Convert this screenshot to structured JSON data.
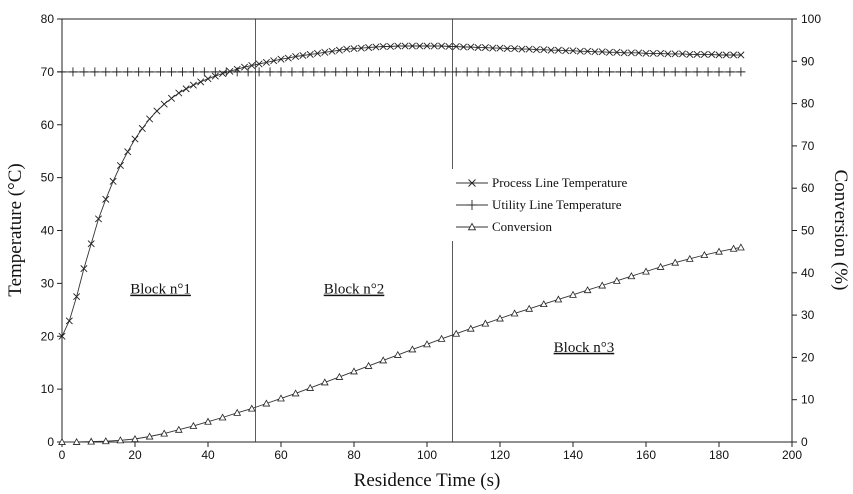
{
  "chart_data": {
    "type": "line",
    "xlabel": "Residence Time (s)",
    "ylabel": "Temperature (°C)",
    "y2label": "Conversion (%)",
    "xlim": [
      0,
      200
    ],
    "ylim": [
      0,
      80
    ],
    "y2lim": [
      0,
      100
    ],
    "xticks": [
      0,
      20,
      40,
      60,
      80,
      100,
      120,
      140,
      160,
      180,
      200
    ],
    "yticks": [
      0,
      10,
      20,
      30,
      40,
      50,
      60,
      70,
      80
    ],
    "y2ticks": [
      0,
      10,
      20,
      30,
      40,
      50,
      60,
      70,
      80,
      90,
      100
    ],
    "grid": false,
    "legend_position": "center-right",
    "block_dividers_x": [
      53,
      107
    ],
    "block_labels": [
      {
        "text": "Block n°1",
        "x": 27,
        "y": 29
      },
      {
        "text": "Block n°2",
        "x": 80,
        "y": 29
      },
      {
        "text": "Block n°3",
        "x": 143,
        "y": 18
      }
    ],
    "series": [
      {
        "name": "Process Line Temperature",
        "axis": "left",
        "marker": "x",
        "x": [
          0,
          2,
          4,
          6,
          8,
          10,
          12,
          14,
          16,
          18,
          20,
          22,
          24,
          26,
          28,
          30,
          32,
          34,
          36,
          38,
          40,
          42,
          44,
          46,
          48,
          50,
          52,
          54,
          56,
          58,
          60,
          62,
          64,
          66,
          68,
          70,
          72,
          74,
          76,
          78,
          80,
          82,
          84,
          86,
          88,
          90,
          92,
          94,
          96,
          98,
          100,
          102,
          104,
          106,
          108,
          110,
          112,
          114,
          116,
          118,
          120,
          122,
          124,
          126,
          128,
          130,
          132,
          134,
          136,
          138,
          140,
          142,
          144,
          146,
          148,
          150,
          152,
          154,
          156,
          158,
          160,
          162,
          164,
          166,
          168,
          170,
          172,
          174,
          176,
          178,
          180,
          182,
          184,
          186
        ],
        "y": [
          20.0,
          22.9,
          27.5,
          32.8,
          37.5,
          42.2,
          45.9,
          49.3,
          52.3,
          54.9,
          57.3,
          59.3,
          61.1,
          62.6,
          63.9,
          65.0,
          66.0,
          66.8,
          67.5,
          68.1,
          68.7,
          69.2,
          69.7,
          70.1,
          70.5,
          70.9,
          71.2,
          71.5,
          71.8,
          72.1,
          72.4,
          72.6,
          72.9,
          73.1,
          73.3,
          73.5,
          73.7,
          73.9,
          74.1,
          74.3,
          74.4,
          74.5,
          74.6,
          74.7,
          74.8,
          74.8,
          74.9,
          74.9,
          74.9,
          74.9,
          74.9,
          74.9,
          74.9,
          74.8,
          74.8,
          74.7,
          74.7,
          74.6,
          74.6,
          74.5,
          74.5,
          74.4,
          74.4,
          74.3,
          74.3,
          74.2,
          74.2,
          74.1,
          74.1,
          74.0,
          74.0,
          73.9,
          73.9,
          73.8,
          73.8,
          73.7,
          73.7,
          73.6,
          73.6,
          73.6,
          73.5,
          73.5,
          73.5,
          73.4,
          73.4,
          73.4,
          73.3,
          73.3,
          73.3,
          73.3,
          73.2,
          73.2,
          73.2,
          73.2
        ]
      },
      {
        "name": "Utility Line Temperature",
        "axis": "left",
        "marker": "plus",
        "x": [
          0,
          3,
          6,
          9,
          12,
          15,
          18,
          21,
          24,
          27,
          30,
          33,
          36,
          39,
          42,
          45,
          48,
          51,
          54,
          57,
          60,
          63,
          66,
          69,
          72,
          75,
          78,
          81,
          84,
          87,
          90,
          93,
          96,
          99,
          102,
          105,
          108,
          111,
          114,
          117,
          120,
          123,
          126,
          129,
          132,
          135,
          138,
          141,
          144,
          147,
          150,
          153,
          156,
          159,
          162,
          165,
          168,
          171,
          174,
          177,
          180,
          183,
          186
        ],
        "y": [
          70,
          70,
          70,
          70,
          70,
          70,
          70,
          70,
          70,
          70,
          70,
          70,
          70,
          70,
          70,
          70,
          70,
          70,
          70,
          70,
          70,
          70,
          70,
          70,
          70,
          70,
          70,
          70,
          70,
          70,
          70,
          70,
          70,
          70,
          70,
          70,
          70,
          70,
          70,
          70,
          70,
          70,
          70,
          70,
          70,
          70,
          70,
          70,
          70,
          70,
          70,
          70,
          70,
          70,
          70,
          70,
          70,
          70,
          70,
          70,
          70,
          70,
          70
        ]
      },
      {
        "name": "Conversion",
        "axis": "right",
        "marker": "triangle",
        "x": [
          0,
          4,
          8,
          12,
          16,
          20,
          24,
          28,
          32,
          36,
          40,
          44,
          48,
          52,
          56,
          60,
          64,
          68,
          72,
          76,
          80,
          84,
          88,
          92,
          96,
          100,
          104,
          108,
          112,
          116,
          120,
          124,
          128,
          132,
          136,
          140,
          144,
          148,
          152,
          156,
          160,
          164,
          168,
          172,
          176,
          180,
          184,
          186
        ],
        "y": [
          0.0,
          0.0,
          0.1,
          0.2,
          0.4,
          0.7,
          1.3,
          2.0,
          2.9,
          3.8,
          4.8,
          5.8,
          6.9,
          7.9,
          9.1,
          10.3,
          11.5,
          12.8,
          14.1,
          15.4,
          16.7,
          18.0,
          19.3,
          20.6,
          21.9,
          23.1,
          24.4,
          25.6,
          26.8,
          28.0,
          29.2,
          30.4,
          31.5,
          32.6,
          33.7,
          34.8,
          35.9,
          37.0,
          38.1,
          39.2,
          40.3,
          41.4,
          42.4,
          43.3,
          44.2,
          45.0,
          45.7,
          46.0
        ]
      }
    ]
  }
}
